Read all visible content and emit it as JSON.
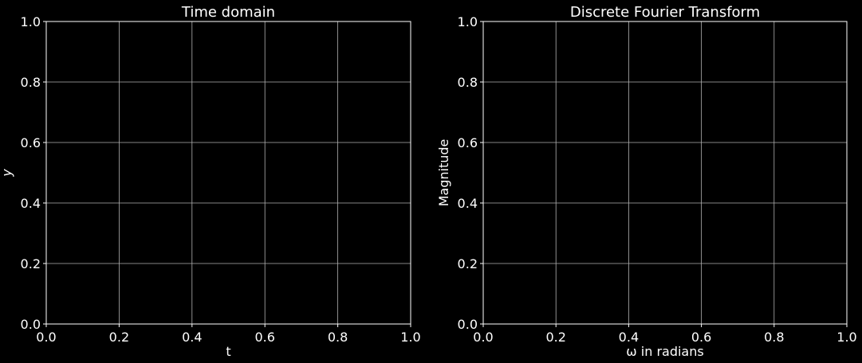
{
  "colors": {
    "background": "#000000",
    "text": "#ffffff",
    "grid": "#b0b0b0",
    "spine": "#ffffff"
  },
  "chart_data": [
    {
      "type": "line",
      "title": "Time domain",
      "xlabel": "t",
      "ylabel": "y",
      "xlim": [
        0.0,
        1.0
      ],
      "ylim": [
        0.0,
        1.0
      ],
      "xticks": [
        "0.0",
        "0.2",
        "0.4",
        "0.6",
        "0.8",
        "1.0"
      ],
      "yticks": [
        "0.0",
        "0.2",
        "0.4",
        "0.6",
        "0.8",
        "1.0"
      ],
      "grid": true,
      "series": []
    },
    {
      "type": "line",
      "title": "Discrete Fourier Transform",
      "xlabel": "ω in radians",
      "ylabel": "Magnitude",
      "xlim": [
        0.0,
        1.0
      ],
      "ylim": [
        0.0,
        1.0
      ],
      "xticks": [
        "0.0",
        "0.2",
        "0.4",
        "0.6",
        "0.8",
        "1.0"
      ],
      "yticks": [
        "0.0",
        "0.2",
        "0.4",
        "0.6",
        "0.8",
        "1.0"
      ],
      "grid": true,
      "series": []
    }
  ]
}
